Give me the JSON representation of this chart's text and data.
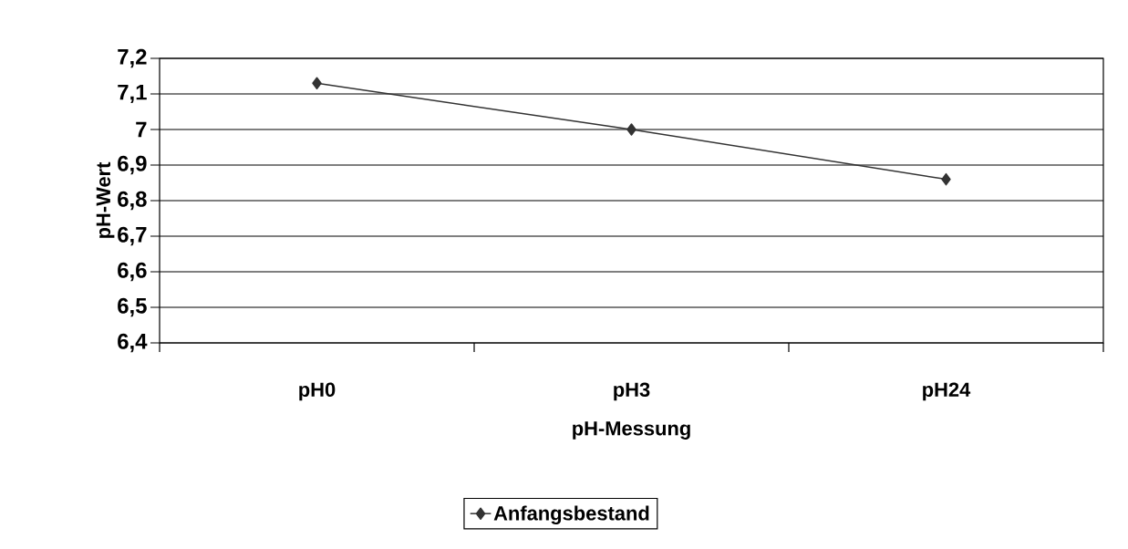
{
  "chart_data": {
    "type": "line",
    "xlabel": "pH-Messung",
    "ylabel": "pH-Wert",
    "categories": [
      "pH0",
      "pH3",
      "pH24"
    ],
    "series": [
      {
        "name": "Anfangsbestand",
        "color": "#333333",
        "values": [
          7.13,
          7.0,
          6.86
        ]
      }
    ],
    "ylim": [
      6.4,
      7.2
    ],
    "yticks": [
      {
        "value": 6.4,
        "label": "6,4"
      },
      {
        "value": 6.5,
        "label": "6,5"
      },
      {
        "value": 6.6,
        "label": "6,6"
      },
      {
        "value": 6.7,
        "label": "6,7"
      },
      {
        "value": 6.8,
        "label": "6,8"
      },
      {
        "value": 6.9,
        "label": "6,9"
      },
      7,
      {
        "value": 7.1,
        "label": "7,1"
      },
      {
        "value": 7.2,
        "label": "7,2"
      }
    ],
    "grid": "y",
    "legend": "bottom",
    "marker": "diamond",
    "line_style": "solid"
  }
}
